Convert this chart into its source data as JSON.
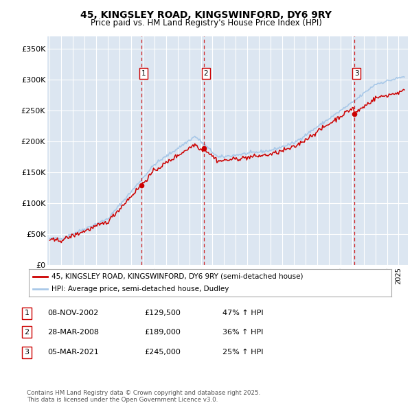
{
  "title": "45, KINGSLEY ROAD, KINGSWINFORD, DY6 9RY",
  "subtitle": "Price paid vs. HM Land Registry's House Price Index (HPI)",
  "ylabel_ticks": [
    "£0",
    "£50K",
    "£100K",
    "£150K",
    "£200K",
    "£250K",
    "£300K",
    "£350K"
  ],
  "ytick_values": [
    0,
    50000,
    100000,
    150000,
    200000,
    250000,
    300000,
    350000
  ],
  "ylim": [
    0,
    370000
  ],
  "xlim_start": 1994.8,
  "xlim_end": 2025.8,
  "background_color": "#ffffff",
  "plot_bg_color": "#dce6f1",
  "grid_color": "#ffffff",
  "legend1_label": "45, KINGSLEY ROAD, KINGSWINFORD, DY6 9RY (semi-detached house)",
  "legend2_label": "HPI: Average price, semi-detached house, Dudley",
  "red_color": "#cc0000",
  "blue_color": "#a8c8e8",
  "sale_dates": [
    2002.86,
    2008.24,
    2021.18
  ],
  "sale_prices": [
    129500,
    189000,
    245000
  ],
  "sale_labels": [
    "1",
    "2",
    "3"
  ],
  "footer_text": "Contains HM Land Registry data © Crown copyright and database right 2025.\nThis data is licensed under the Open Government Licence v3.0.",
  "table_data": [
    [
      "1",
      "08-NOV-2002",
      "£129,500",
      "47% ↑ HPI"
    ],
    [
      "2",
      "28-MAR-2008",
      "£189,000",
      "36% ↑ HPI"
    ],
    [
      "3",
      "05-MAR-2021",
      "£245,000",
      "25% ↑ HPI"
    ]
  ]
}
